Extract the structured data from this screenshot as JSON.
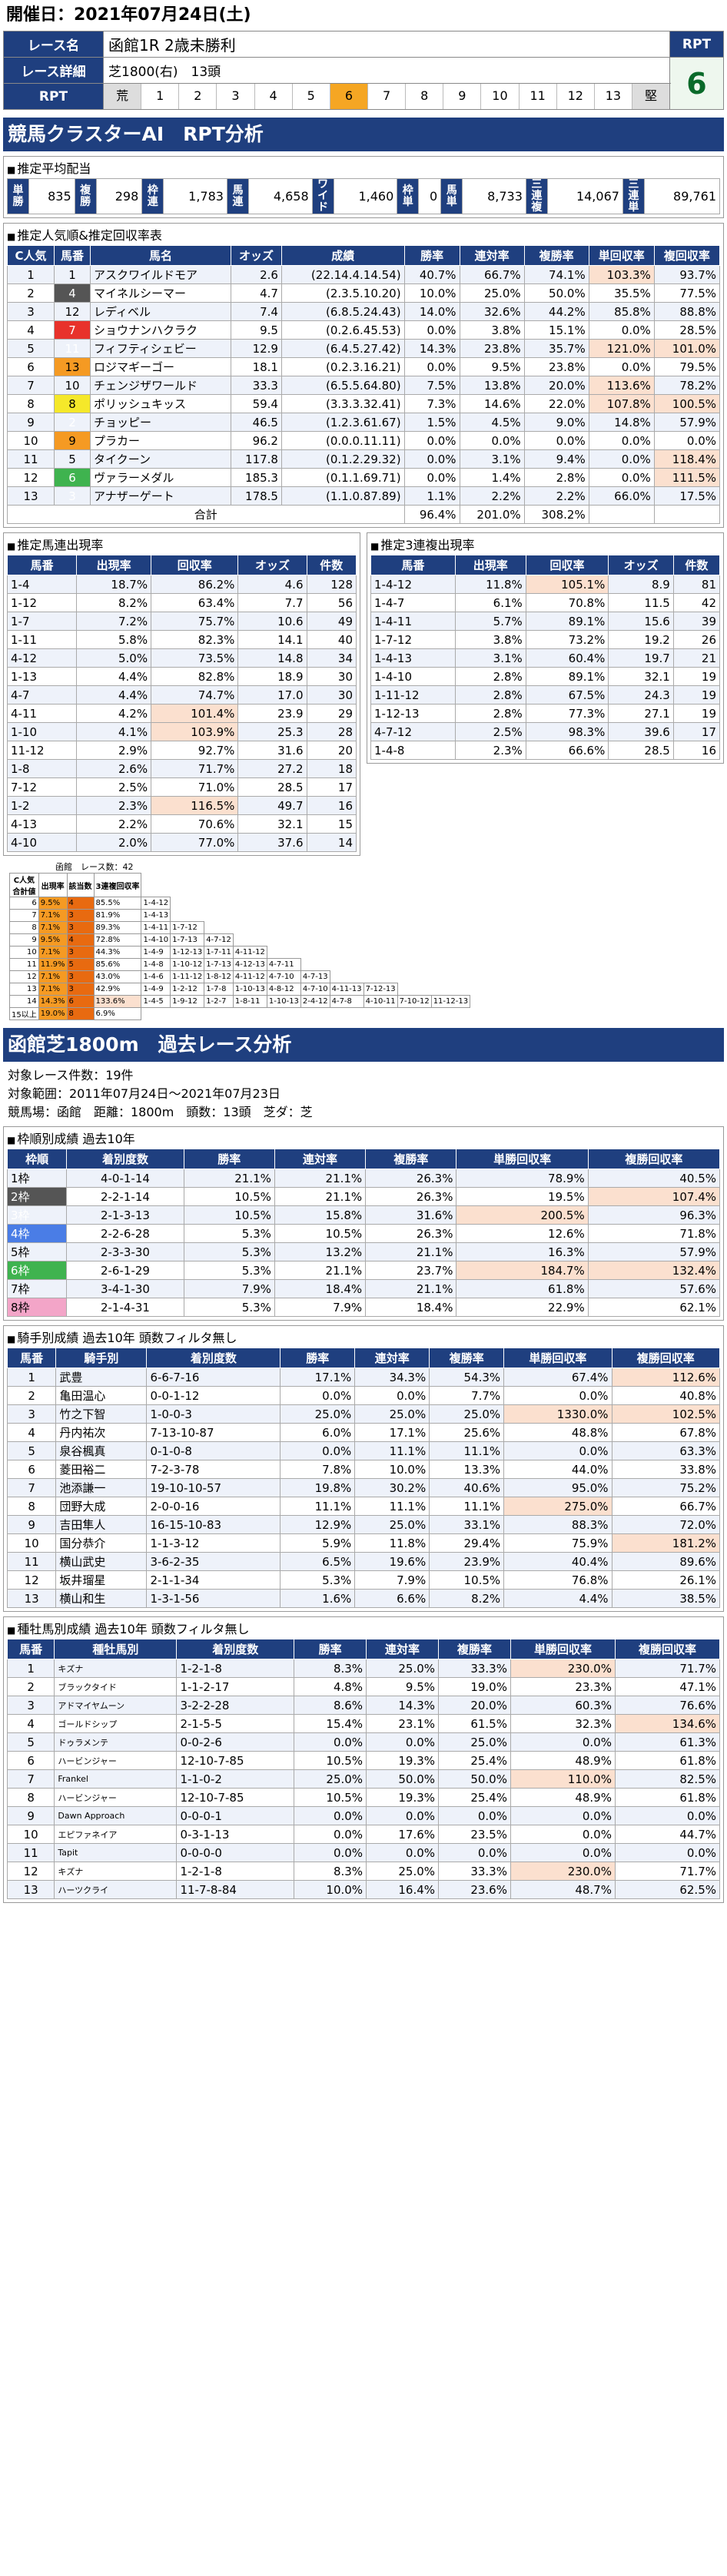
{
  "date": "開催日：2021年07月24日(土)",
  "race": {
    "name_label": "レース名",
    "name": "函館1R 2歳未勝利",
    "detail_label": "レース詳細",
    "course": "芝1800(右)",
    "heads": "13頭",
    "rpt_label": "RPT",
    "rpt_scale": [
      "荒",
      "1",
      "2",
      "3",
      "4",
      "5",
      "6",
      "7",
      "8",
      "9",
      "10",
      "11",
      "12",
      "13",
      "堅"
    ],
    "rpt_selected": "6",
    "rpt_value": "6"
  },
  "ai_title": "競馬クラスターAI　RPT分析",
  "payout": {
    "title": "推定平均配当",
    "items": [
      [
        "単勝",
        "835"
      ],
      [
        "複勝",
        "298"
      ],
      [
        "枠連",
        "1,783"
      ],
      [
        "馬連",
        "4,658"
      ],
      [
        "ワイド",
        "1,460"
      ],
      [
        "枠単",
        "0"
      ],
      [
        "馬単",
        "8,733"
      ],
      [
        "三連複",
        "14,067"
      ],
      [
        "三連単",
        "89,761"
      ]
    ]
  },
  "pop": {
    "title": "推定人気順&推定回収率表",
    "headers": [
      "C人気",
      "馬番",
      "馬名",
      "オッズ",
      "成績",
      "勝率",
      "連対率",
      "複勝率",
      "単回収率",
      "複回収率"
    ],
    "rows": [
      [
        "1",
        "1",
        "1",
        "アスクワイルドモア",
        "2.6",
        "(22.14.4.14.54)",
        "40.7%",
        "66.7%",
        "74.1%",
        "103.3%",
        "93.7%"
      ],
      [
        "2",
        "2",
        "4",
        "マイネルシーマー",
        "4.7",
        "(2.3.5.10.20)",
        "10.0%",
        "25.0%",
        "50.0%",
        "35.5%",
        "77.5%"
      ],
      [
        "3",
        "8",
        "12",
        "レディベル",
        "7.4",
        "(6.8.5.24.43)",
        "14.0%",
        "32.6%",
        "44.2%",
        "85.8%",
        "88.8%"
      ],
      [
        "4",
        "3",
        "7",
        "ショウナンハクラク",
        "9.5",
        "(0.2.6.45.53)",
        "0.0%",
        "3.8%",
        "15.1%",
        "0.0%",
        "28.5%"
      ],
      [
        "5",
        "6",
        "11",
        "フィフティシェビー",
        "12.9",
        "(6.4.5.27.42)",
        "14.3%",
        "23.8%",
        "35.7%",
        "121.0%",
        "101.0%"
      ],
      [
        "6",
        "7",
        "13",
        "ロジマギーゴー",
        "18.1",
        "(0.2.3.16.21)",
        "0.0%",
        "9.5%",
        "23.8%",
        "0.0%",
        "79.5%"
      ],
      [
        "7",
        "5",
        "10",
        "チェンジザワールド",
        "33.3",
        "(6.5.5.64.80)",
        "7.5%",
        "13.8%",
        "20.0%",
        "113.6%",
        "78.2%"
      ],
      [
        "8",
        "5",
        "8",
        "ポリッシュキッス",
        "59.4",
        "(3.3.3.32.41)",
        "7.3%",
        "14.6%",
        "22.0%",
        "107.8%",
        "100.5%"
      ],
      [
        "9",
        "2",
        "2",
        "チョッピー",
        "46.5",
        "(1.2.3.61.67)",
        "1.5%",
        "4.5%",
        "9.0%",
        "14.8%",
        "57.9%"
      ],
      [
        "10",
        "7",
        "9",
        "プラカー",
        "96.2",
        "(0.0.0.11.11)",
        "0.0%",
        "0.0%",
        "0.0%",
        "0.0%",
        "0.0%"
      ],
      [
        "11",
        "1",
        "5",
        "タイクーン",
        "117.8",
        "(0.1.2.29.32)",
        "0.0%",
        "3.1%",
        "9.4%",
        "0.0%",
        "118.4%"
      ],
      [
        "12",
        "6",
        "6",
        "ヴァラーメダル",
        "185.3",
        "(0.1.1.69.71)",
        "0.0%",
        "1.4%",
        "2.8%",
        "0.0%",
        "111.5%"
      ],
      [
        "13",
        "3",
        "3",
        "アナザーゲート",
        "178.5",
        "(1.1.0.87.89)",
        "1.1%",
        "2.2%",
        "2.2%",
        "66.0%",
        "17.5%"
      ]
    ],
    "total_label": "合計",
    "totals": [
      "96.4%",
      "201.0%",
      "308.2%"
    ]
  },
  "umaren": {
    "title": "推定馬連出現率",
    "headers": [
      "馬番",
      "出現率",
      "回収率",
      "オッズ",
      "件数"
    ],
    "rows": [
      [
        "1-4",
        "18.7%",
        "86.2%",
        "4.6",
        "128"
      ],
      [
        "1-12",
        "8.2%",
        "63.4%",
        "7.7",
        "56"
      ],
      [
        "1-7",
        "7.2%",
        "75.7%",
        "10.6",
        "49"
      ],
      [
        "1-11",
        "5.8%",
        "82.3%",
        "14.1",
        "40"
      ],
      [
        "4-12",
        "5.0%",
        "73.5%",
        "14.8",
        "34"
      ],
      [
        "1-13",
        "4.4%",
        "82.8%",
        "18.9",
        "30"
      ],
      [
        "4-7",
        "4.4%",
        "74.7%",
        "17.0",
        "30"
      ],
      [
        "4-11",
        "4.2%",
        "101.4%",
        "23.9",
        "29"
      ],
      [
        "1-10",
        "4.1%",
        "103.9%",
        "25.3",
        "28"
      ],
      [
        "11-12",
        "2.9%",
        "92.7%",
        "31.6",
        "20"
      ],
      [
        "1-8",
        "2.6%",
        "71.7%",
        "27.2",
        "18"
      ],
      [
        "7-12",
        "2.5%",
        "71.0%",
        "28.5",
        "17"
      ],
      [
        "1-2",
        "2.3%",
        "116.5%",
        "49.7",
        "16"
      ],
      [
        "4-13",
        "2.2%",
        "70.6%",
        "32.1",
        "15"
      ],
      [
        "4-10",
        "2.0%",
        "77.0%",
        "37.6",
        "14"
      ]
    ]
  },
  "sanren": {
    "title": "推定3連複出現率",
    "headers": [
      "馬番",
      "出現率",
      "回収率",
      "オッズ",
      "件数"
    ],
    "rows": [
      [
        "1-4-12",
        "11.8%",
        "105.1%",
        "8.9",
        "81"
      ],
      [
        "1-4-7",
        "6.1%",
        "70.8%",
        "11.5",
        "42"
      ],
      [
        "1-4-11",
        "5.7%",
        "89.1%",
        "15.6",
        "39"
      ],
      [
        "1-7-12",
        "3.8%",
        "73.2%",
        "19.2",
        "26"
      ],
      [
        "1-4-13",
        "3.1%",
        "60.4%",
        "19.7",
        "21"
      ],
      [
        "1-4-10",
        "2.8%",
        "89.1%",
        "32.1",
        "19"
      ],
      [
        "1-11-12",
        "2.8%",
        "67.5%",
        "24.3",
        "19"
      ],
      [
        "1-12-13",
        "2.8%",
        "77.3%",
        "27.1",
        "19"
      ],
      [
        "4-7-12",
        "2.5%",
        "98.3%",
        "39.6",
        "17"
      ],
      [
        "1-4-8",
        "2.3%",
        "66.6%",
        "28.5",
        "16"
      ]
    ]
  },
  "mini": {
    "caption": "函館　レース数：42",
    "headers": [
      "C人気\n合計値",
      "出現率",
      "該当数",
      "3連複回収率"
    ],
    "rows": [
      [
        "6",
        "9.5%",
        "4",
        "85.5%"
      ],
      [
        "7",
        "7.1%",
        "3",
        "81.9%"
      ],
      [
        "8",
        "7.1%",
        "3",
        "89.3%"
      ],
      [
        "9",
        "9.5%",
        "4",
        "72.8%"
      ],
      [
        "10",
        "7.1%",
        "3",
        "44.3%"
      ],
      [
        "11",
        "11.9%",
        "5",
        "85.6%"
      ],
      [
        "12",
        "7.1%",
        "3",
        "43.0%"
      ],
      [
        "13",
        "7.1%",
        "3",
        "42.9%"
      ],
      [
        "14",
        "14.3%",
        "6",
        "133.6%"
      ],
      [
        "15以上",
        "19.0%",
        "8",
        "6.9%"
      ]
    ],
    "combos": [
      [
        "1-4-12"
      ],
      [
        "1-4-13"
      ],
      [
        "1-4-11",
        "1-7-12"
      ],
      [
        "1-4-10",
        "1-7-13",
        "4-7-12"
      ],
      [
        "1-4-9",
        "1-12-13",
        "1-7-11",
        "4-11-12"
      ],
      [
        "1-4-8",
        "1-10-12",
        "1-7-13",
        "4-12-13",
        "4-7-11"
      ],
      [
        "1-4-6",
        "1-11-12",
        "1-8-12",
        "4-11-12",
        "4-7-10",
        "4-7-13"
      ],
      [
        "1-4-9",
        "1-2-12",
        "1-7-8",
        "1-10-13",
        "4-8-12",
        "4-7-10",
        "4-11-13",
        "7-12-13"
      ],
      [
        "1-4-5",
        "1-9-12",
        "1-2-7",
        "1-8-11",
        "1-10-13",
        "2-4-12",
        "4-7-8",
        "4-10-11",
        "7-10-12",
        "11-12-13"
      ]
    ]
  },
  "course": {
    "title": "函館芝1800m　過去レース分析",
    "lines": [
      "対象レース件数：19件",
      "対象範囲：2011年07月24日～2021年07月23日",
      "競馬場：函館　距離：1800m　頭数：13頭　芝ダ：芝"
    ]
  },
  "waku": {
    "title": "枠順別成績 過去10年",
    "headers": [
      "枠順",
      "着別度数",
      "勝率",
      "連対率",
      "複勝率",
      "単勝回収率",
      "複勝回収率"
    ],
    "rows": [
      [
        "1枠",
        "4-0-1-14",
        "21.1%",
        "21.1%",
        "26.3%",
        "78.9%",
        "40.5%"
      ],
      [
        "2枠",
        "2-2-1-14",
        "10.5%",
        "21.1%",
        "26.3%",
        "19.5%",
        "107.4%"
      ],
      [
        "3枠",
        "2-1-3-13",
        "10.5%",
        "15.8%",
        "31.6%",
        "200.5%",
        "96.3%"
      ],
      [
        "4枠",
        "2-2-6-28",
        "5.3%",
        "10.5%",
        "26.3%",
        "12.6%",
        "71.8%"
      ],
      [
        "5枠",
        "2-3-3-30",
        "5.3%",
        "13.2%",
        "21.1%",
        "16.3%",
        "57.9%"
      ],
      [
        "6枠",
        "2-6-1-29",
        "5.3%",
        "21.1%",
        "23.7%",
        "184.7%",
        "132.4%"
      ],
      [
        "7枠",
        "3-4-1-30",
        "7.9%",
        "18.4%",
        "21.1%",
        "61.8%",
        "57.6%"
      ],
      [
        "8枠",
        "2-1-4-31",
        "5.3%",
        "7.9%",
        "18.4%",
        "22.9%",
        "62.1%"
      ]
    ]
  },
  "jockey": {
    "title": "騎手別成績 過去10年 頭数フィルタ無し",
    "headers": [
      "馬番",
      "騎手別",
      "着別度数",
      "勝率",
      "連対率",
      "複勝率",
      "単勝回収率",
      "複勝回収率"
    ],
    "rows": [
      [
        "1",
        "武豊",
        "6-6-7-16",
        "17.1%",
        "34.3%",
        "54.3%",
        "67.4%",
        "112.6%"
      ],
      [
        "2",
        "亀田温心",
        "0-0-1-12",
        "0.0%",
        "0.0%",
        "7.7%",
        "0.0%",
        "40.8%"
      ],
      [
        "3",
        "竹之下智",
        "1-0-0-3",
        "25.0%",
        "25.0%",
        "25.0%",
        "1330.0%",
        "102.5%"
      ],
      [
        "4",
        "丹内祐次",
        "7-13-10-87",
        "6.0%",
        "17.1%",
        "25.6%",
        "48.8%",
        "67.8%"
      ],
      [
        "5",
        "泉谷楓真",
        "0-1-0-8",
        "0.0%",
        "11.1%",
        "11.1%",
        "0.0%",
        "63.3%"
      ],
      [
        "6",
        "菱田裕二",
        "7-2-3-78",
        "7.8%",
        "10.0%",
        "13.3%",
        "44.0%",
        "33.8%"
      ],
      [
        "7",
        "池添謙一",
        "19-10-10-57",
        "19.8%",
        "30.2%",
        "40.6%",
        "95.0%",
        "75.2%"
      ],
      [
        "8",
        "団野大成",
        "2-0-0-16",
        "11.1%",
        "11.1%",
        "11.1%",
        "275.0%",
        "66.7%"
      ],
      [
        "9",
        "吉田隼人",
        "16-15-10-83",
        "12.9%",
        "25.0%",
        "33.1%",
        "88.3%",
        "72.0%"
      ],
      [
        "10",
        "国分恭介",
        "1-1-3-12",
        "5.9%",
        "11.8%",
        "29.4%",
        "75.9%",
        "181.2%"
      ],
      [
        "11",
        "横山武史",
        "3-6-2-35",
        "6.5%",
        "19.6%",
        "23.9%",
        "40.4%",
        "89.6%"
      ],
      [
        "12",
        "坂井瑠星",
        "2-1-1-34",
        "5.3%",
        "7.9%",
        "10.5%",
        "76.8%",
        "26.1%"
      ],
      [
        "13",
        "横山和生",
        "1-3-1-56",
        "1.6%",
        "6.6%",
        "8.2%",
        "4.4%",
        "38.5%"
      ]
    ]
  },
  "sire": {
    "title": "種牡馬別成績 過去10年 頭数フィルタ無し",
    "headers": [
      "馬番",
      "種牡馬別",
      "着別度数",
      "勝率",
      "連対率",
      "複勝率",
      "単勝回収率",
      "複勝回収率"
    ],
    "rows": [
      [
        "1",
        "キズナ",
        "1-2-1-8",
        "8.3%",
        "25.0%",
        "33.3%",
        "230.0%",
        "71.7%"
      ],
      [
        "2",
        "ブラックタイド",
        "1-1-2-17",
        "4.8%",
        "9.5%",
        "19.0%",
        "23.3%",
        "47.1%"
      ],
      [
        "3",
        "アドマイヤムーン",
        "3-2-2-28",
        "8.6%",
        "14.3%",
        "20.0%",
        "60.3%",
        "76.6%"
      ],
      [
        "4",
        "ゴールドシップ",
        "2-1-5-5",
        "15.4%",
        "23.1%",
        "61.5%",
        "32.3%",
        "134.6%"
      ],
      [
        "5",
        "ドゥラメンテ",
        "0-0-2-6",
        "0.0%",
        "0.0%",
        "25.0%",
        "0.0%",
        "61.3%"
      ],
      [
        "6",
        "ハービンジャー",
        "12-10-7-85",
        "10.5%",
        "19.3%",
        "25.4%",
        "48.9%",
        "61.8%"
      ],
      [
        "7",
        "Frankel",
        "1-1-0-2",
        "25.0%",
        "50.0%",
        "50.0%",
        "110.0%",
        "82.5%"
      ],
      [
        "8",
        "ハービンジャー",
        "12-10-7-85",
        "10.5%",
        "19.3%",
        "25.4%",
        "48.9%",
        "61.8%"
      ],
      [
        "9",
        "Dawn Approach",
        "0-0-0-1",
        "0.0%",
        "0.0%",
        "0.0%",
        "0.0%",
        "0.0%"
      ],
      [
        "10",
        "エピファネイア",
        "0-3-1-13",
        "0.0%",
        "17.6%",
        "23.5%",
        "0.0%",
        "44.7%"
      ],
      [
        "11",
        "Tapit",
        "0-0-0-0",
        "0.0%",
        "0.0%",
        "0.0%",
        "0.0%",
        "0.0%"
      ],
      [
        "12",
        "キズナ",
        "1-2-1-8",
        "8.3%",
        "25.0%",
        "33.3%",
        "230.0%",
        "71.7%"
      ],
      [
        "13",
        "ハーツクライ",
        "11-7-8-84",
        "10.0%",
        "16.4%",
        "23.6%",
        "48.7%",
        "62.5%"
      ]
    ]
  }
}
